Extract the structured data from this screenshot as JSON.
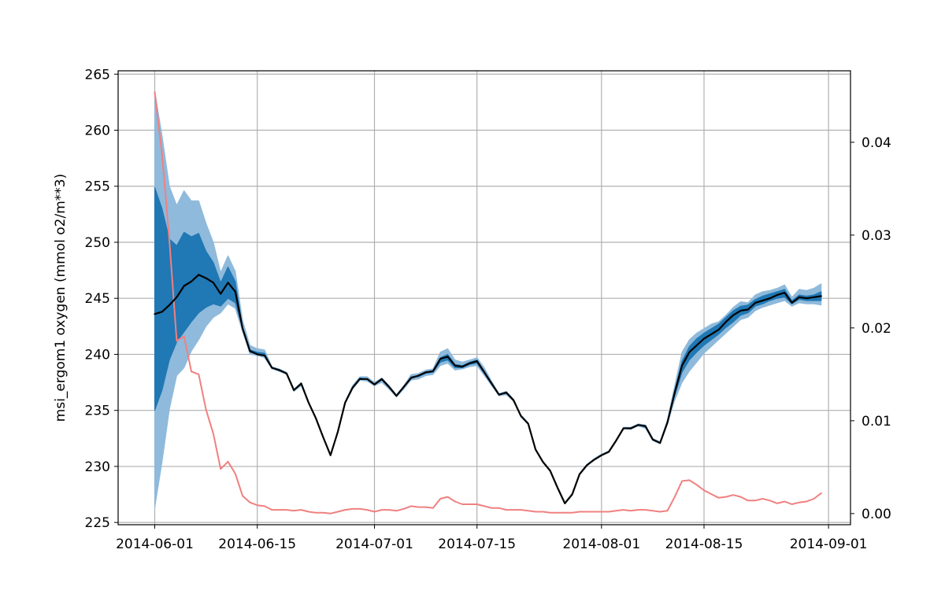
{
  "chart_data": {
    "type": "area",
    "ylabel": "msi_ergom1 oxygen (mmol o2/m**3)",
    "y2label": "",
    "grid": true,
    "x": [
      "2014-06-01",
      "2014-06-02",
      "2014-06-03",
      "2014-06-04",
      "2014-06-05",
      "2014-06-06",
      "2014-06-07",
      "2014-06-08",
      "2014-06-09",
      "2014-06-10",
      "2014-06-11",
      "2014-06-12",
      "2014-06-13",
      "2014-06-14",
      "2014-06-15",
      "2014-06-16",
      "2014-06-17",
      "2014-06-18",
      "2014-06-19",
      "2014-06-20",
      "2014-06-21",
      "2014-06-22",
      "2014-06-23",
      "2014-06-24",
      "2014-06-25",
      "2014-06-26",
      "2014-06-27",
      "2014-06-28",
      "2014-06-29",
      "2014-06-30",
      "2014-07-01",
      "2014-07-02",
      "2014-07-03",
      "2014-07-04",
      "2014-07-05",
      "2014-07-06",
      "2014-07-07",
      "2014-07-08",
      "2014-07-09",
      "2014-07-10",
      "2014-07-11",
      "2014-07-12",
      "2014-07-13",
      "2014-07-14",
      "2014-07-15",
      "2014-07-16",
      "2014-07-17",
      "2014-07-18",
      "2014-07-19",
      "2014-07-20",
      "2014-07-21",
      "2014-07-22",
      "2014-07-23",
      "2014-07-24",
      "2014-07-25",
      "2014-07-26",
      "2014-07-27",
      "2014-07-28",
      "2014-07-29",
      "2014-07-30",
      "2014-07-31",
      "2014-08-01",
      "2014-08-02",
      "2014-08-03",
      "2014-08-04",
      "2014-08-05",
      "2014-08-06",
      "2014-08-07",
      "2014-08-08",
      "2014-08-09",
      "2014-08-10",
      "2014-08-11",
      "2014-08-12",
      "2014-08-13",
      "2014-08-14",
      "2014-08-15",
      "2014-08-16",
      "2014-08-17",
      "2014-08-18",
      "2014-08-19",
      "2014-08-20",
      "2014-08-21",
      "2014-08-22",
      "2014-08-23",
      "2014-08-24",
      "2014-08-25",
      "2014-08-26",
      "2014-08-27",
      "2014-08-28",
      "2014-08-29",
      "2014-08-30",
      "2014-08-31"
    ],
    "xticks": [
      "2014-06-01",
      "2014-06-15",
      "2014-07-01",
      "2014-07-15",
      "2014-08-01",
      "2014-08-15",
      "2014-09-01"
    ],
    "xlim": [
      "2014-05-27",
      "2014-09-04"
    ],
    "ylim": [
      224.8,
      265.3
    ],
    "yticks": [
      225,
      230,
      235,
      240,
      245,
      250,
      255,
      260,
      265
    ],
    "y2lim": [
      -0.0012,
      0.0477
    ],
    "y2ticks": [
      0.0,
      0.01,
      0.02,
      0.03,
      0.04
    ],
    "y2ticklabels": [
      "0.00",
      "0.01",
      "0.02",
      "0.03",
      "0.04"
    ],
    "series": [
      {
        "role": "outer-band",
        "color": "#8fbadb",
        "upper": [
          263.5,
          259.5,
          255.0,
          253.3,
          254.6,
          253.7,
          253.7,
          251.7,
          250.0,
          247.3,
          248.8,
          247.4,
          243.0,
          240.8,
          240.5,
          240.4,
          238.9,
          238.7,
          238.4,
          236.9,
          237.5,
          235.8,
          234.4,
          232.7,
          231.0,
          233.2,
          235.8,
          237.2,
          238.0,
          238.0,
          237.5,
          237.9,
          237.2,
          236.4,
          237.2,
          238.2,
          238.3,
          238.6,
          238.7,
          240.2,
          240.5,
          239.5,
          239.3,
          239.5,
          239.7,
          238.8,
          237.6,
          236.5,
          236.7,
          236.0,
          234.6,
          233.9,
          231.6,
          230.5,
          229.7,
          228.2,
          226.8,
          227.6,
          229.4,
          230.2,
          230.7,
          231.1,
          231.4,
          232.4,
          233.5,
          233.5,
          233.8,
          233.7,
          232.5,
          232.2,
          234.2,
          237.2,
          240.2,
          241.3,
          241.9,
          242.3,
          242.7,
          242.9,
          243.5,
          244.2,
          244.7,
          244.6,
          245.3,
          245.6,
          245.7,
          245.9,
          246.2,
          245.1,
          245.8,
          245.7,
          245.9,
          246.3
        ],
        "lower": [
          226.3,
          230.4,
          235.1,
          238.1,
          238.8,
          240.3,
          241.3,
          242.5,
          243.3,
          243.7,
          244.5,
          244.1,
          242.0,
          240.0,
          239.9,
          239.7,
          238.7,
          238.5,
          238.2,
          236.7,
          237.2,
          235.6,
          234.3,
          232.6,
          231.0,
          233.0,
          235.6,
          236.9,
          237.7,
          237.6,
          237.2,
          237.5,
          236.9,
          236.2,
          236.9,
          237.7,
          237.8,
          238.1,
          238.2,
          239.0,
          239.2,
          238.6,
          238.7,
          238.9,
          239.0,
          238.1,
          237.2,
          236.3,
          236.4,
          235.8,
          234.4,
          233.8,
          231.5,
          230.4,
          229.6,
          228.1,
          226.7,
          227.5,
          229.3,
          230.1,
          230.6,
          231.0,
          231.3,
          232.3,
          233.4,
          233.3,
          233.6,
          233.4,
          232.3,
          232.0,
          233.8,
          235.9,
          237.5,
          238.5,
          239.3,
          240.1,
          240.7,
          241.3,
          241.9,
          242.5,
          243.1,
          243.3,
          243.9,
          244.2,
          244.4,
          244.6,
          244.8,
          244.3,
          244.6,
          244.5,
          244.5,
          244.4
        ]
      },
      {
        "role": "inner-band",
        "color": "#2078b4",
        "upper": [
          254.9,
          253.0,
          250.3,
          249.7,
          250.9,
          250.5,
          250.8,
          249.2,
          248.2,
          246.4,
          247.8,
          246.5,
          242.4,
          240.4,
          240.2,
          240.1,
          238.8,
          238.6,
          238.3,
          236.8,
          237.4,
          235.7,
          234.3,
          232.6,
          231.0,
          233.1,
          235.7,
          237.1,
          237.9,
          237.8,
          237.4,
          237.8,
          237.1,
          236.3,
          237.1,
          238.0,
          238.1,
          238.4,
          238.5,
          239.7,
          240.0,
          239.1,
          239.0,
          239.3,
          239.5,
          238.5,
          237.4,
          236.4,
          236.6,
          235.9,
          234.5,
          233.8,
          231.5,
          230.4,
          229.6,
          228.1,
          226.7,
          227.5,
          229.3,
          230.1,
          230.6,
          231.0,
          231.3,
          232.3,
          233.4,
          233.4,
          233.7,
          233.6,
          232.4,
          232.1,
          234.0,
          236.8,
          239.4,
          240.7,
          241.4,
          241.9,
          242.3,
          242.7,
          243.3,
          243.9,
          244.3,
          244.4,
          244.9,
          245.2,
          245.4,
          245.6,
          245.8,
          244.8,
          245.3,
          245.2,
          245.3,
          245.6
        ],
        "lower": [
          235.0,
          236.8,
          239.5,
          241.1,
          242.0,
          242.9,
          243.7,
          244.2,
          244.5,
          244.3,
          245.0,
          244.6,
          242.3,
          240.2,
          240.0,
          239.9,
          238.8,
          238.5,
          238.3,
          236.8,
          237.3,
          235.7,
          234.3,
          232.6,
          231.0,
          233.1,
          235.7,
          237.0,
          237.8,
          237.8,
          237.3,
          237.7,
          237.0,
          236.3,
          237.0,
          237.9,
          238.0,
          238.3,
          238.4,
          239.3,
          239.5,
          238.8,
          238.8,
          239.1,
          239.2,
          238.3,
          237.3,
          236.4,
          236.5,
          235.9,
          234.5,
          233.8,
          231.5,
          230.4,
          229.6,
          228.1,
          226.7,
          227.5,
          229.3,
          230.1,
          230.6,
          231.0,
          231.3,
          232.3,
          233.4,
          233.4,
          233.7,
          233.5,
          232.4,
          232.1,
          233.9,
          236.3,
          238.4,
          239.5,
          240.2,
          240.8,
          241.3,
          241.8,
          242.4,
          242.9,
          243.5,
          243.7,
          244.3,
          244.5,
          244.8,
          245.0,
          245.1,
          244.5,
          244.9,
          244.8,
          244.8,
          244.8
        ]
      },
      {
        "role": "mean",
        "color": "#000000",
        "values": [
          243.6,
          243.8,
          244.4,
          245.1,
          246.1,
          246.5,
          247.1,
          246.8,
          246.4,
          245.4,
          246.4,
          245.6,
          242.3,
          240.3,
          240.0,
          239.9,
          238.8,
          238.6,
          238.3,
          236.8,
          237.4,
          235.7,
          234.3,
          232.6,
          231.0,
          233.1,
          235.7,
          237.0,
          237.8,
          237.8,
          237.3,
          237.8,
          237.1,
          236.3,
          237.1,
          237.9,
          238.1,
          238.4,
          238.5,
          239.6,
          239.8,
          239.0,
          238.9,
          239.2,
          239.4,
          238.4,
          237.4,
          236.4,
          236.6,
          235.9,
          234.5,
          233.8,
          231.5,
          230.4,
          229.6,
          228.1,
          226.7,
          227.5,
          229.3,
          230.1,
          230.6,
          231.0,
          231.3,
          232.3,
          233.4,
          233.4,
          233.7,
          233.6,
          232.4,
          232.1,
          233.9,
          236.6,
          239.0,
          240.2,
          240.8,
          241.4,
          241.8,
          242.2,
          242.9,
          243.5,
          243.9,
          244.0,
          244.6,
          244.8,
          245.0,
          245.3,
          245.5,
          244.6,
          245.1,
          245.0,
          245.1,
          245.2
        ]
      },
      {
        "role": "secondary",
        "axis": "right",
        "color": "#f08080",
        "values": [
          0.0454,
          0.0387,
          0.0294,
          0.0186,
          0.0191,
          0.0153,
          0.015,
          0.0112,
          0.0086,
          0.0048,
          0.0056,
          0.0043,
          0.0019,
          0.0012,
          0.0009,
          0.0008,
          0.0004,
          0.0004,
          0.0004,
          0.0003,
          0.0004,
          0.0002,
          0.0001,
          0.0001,
          0.0,
          0.0002,
          0.0004,
          0.0005,
          0.0005,
          0.0004,
          0.0002,
          0.0004,
          0.0004,
          0.0003,
          0.0005,
          0.0008,
          0.0007,
          0.0007,
          0.0006,
          0.0016,
          0.0018,
          0.0013,
          0.001,
          0.001,
          0.001,
          0.0008,
          0.0006,
          0.0006,
          0.0004,
          0.0004,
          0.0004,
          0.0003,
          0.0002,
          0.0002,
          0.0001,
          0.0001,
          0.0001,
          0.0001,
          0.0002,
          0.0002,
          0.0002,
          0.0002,
          0.0002,
          0.0003,
          0.0004,
          0.0003,
          0.0004,
          0.0004,
          0.0003,
          0.0002,
          0.0003,
          0.0018,
          0.0035,
          0.0036,
          0.0031,
          0.0025,
          0.0021,
          0.0017,
          0.0018,
          0.002,
          0.0018,
          0.0014,
          0.0014,
          0.0016,
          0.0014,
          0.0011,
          0.0013,
          0.001,
          0.0012,
          0.0013,
          0.0016,
          0.0022
        ]
      }
    ]
  }
}
